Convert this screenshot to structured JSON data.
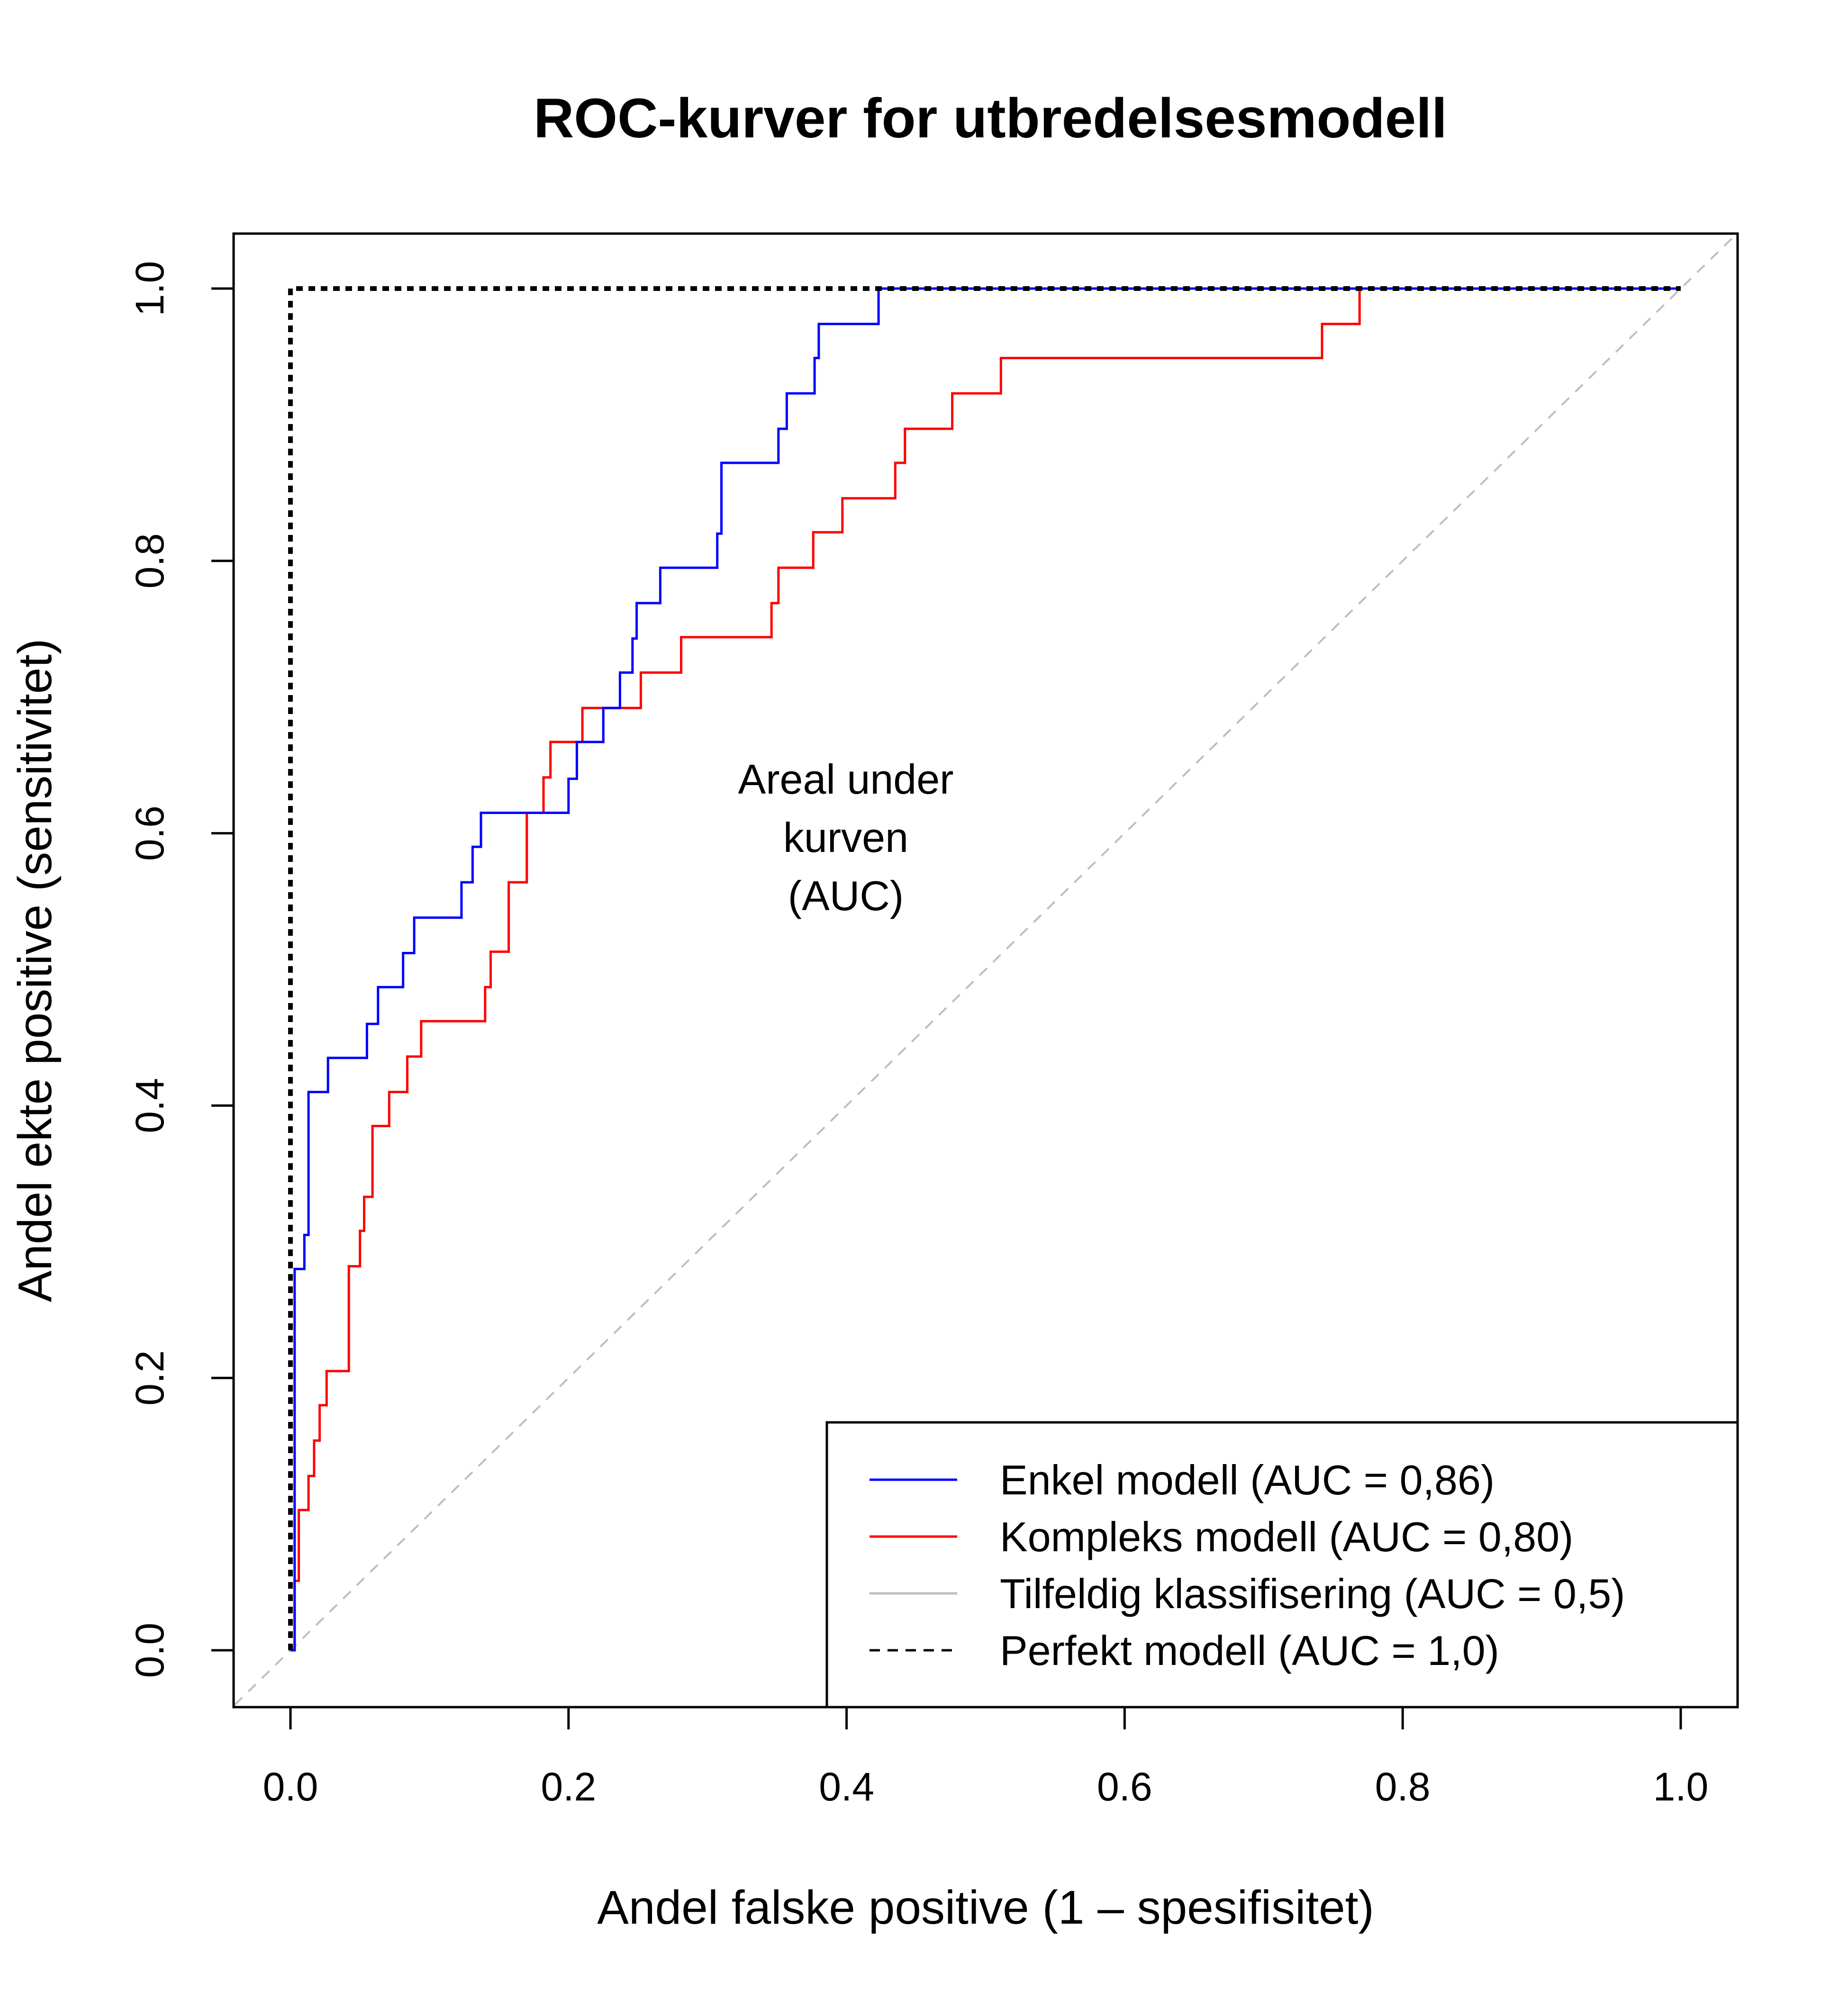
{
  "chart_data": {
    "type": "line",
    "title": "ROC-kurver for utbredelsesmodell",
    "xlabel": "Andel falske positive (1 – spesifisitet)",
    "ylabel": "Andel ekte positive (sensitivitet)",
    "xlim": [
      0,
      1
    ],
    "ylim": [
      0,
      1
    ],
    "x_ticks": [
      "0.0",
      "0.2",
      "0.4",
      "0.6",
      "0.8",
      "1.0"
    ],
    "y_ticks": [
      "0.0",
      "0.2",
      "0.4",
      "0.6",
      "0.8",
      "1.0"
    ],
    "grid": false,
    "legend_position": "bottom-right",
    "annotation": [
      "Areal under",
      "kurven",
      "(AUC)"
    ],
    "series": [
      {
        "name": "Enkel modell (AUC = 0,86)",
        "color": "#0000ff",
        "style": "solid",
        "step": true,
        "x": [
          0,
          0.003,
          0.003,
          0.01,
          0.01,
          0.013,
          0.013,
          0.027,
          0.027,
          0.055,
          0.055,
          0.063,
          0.063,
          0.081,
          0.081,
          0.089,
          0.089,
          0.123,
          0.123,
          0.131,
          0.131,
          0.137,
          0.137,
          0.2,
          0.2,
          0.206,
          0.206,
          0.225,
          0.225,
          0.237,
          0.237,
          0.246,
          0.246,
          0.249,
          0.249,
          0.252,
          0.252,
          0.266,
          0.266,
          0.307,
          0.307,
          0.31,
          0.31,
          0.351,
          0.351,
          0.357,
          0.357,
          0.377,
          0.377,
          0.38,
          0.38,
          0.423,
          0.423,
          1.0
        ],
        "y": [
          0,
          0,
          0.28,
          0.28,
          0.305,
          0.305,
          0.41,
          0.41,
          0.435,
          0.435,
          0.46,
          0.46,
          0.487,
          0.487,
          0.512,
          0.512,
          0.538,
          0.538,
          0.564,
          0.564,
          0.59,
          0.59,
          0.615,
          0.615,
          0.64,
          0.64,
          0.667,
          0.667,
          0.692,
          0.692,
          0.718,
          0.718,
          0.743,
          0.743,
          0.769,
          0.769,
          0.769,
          0.769,
          0.795,
          0.795,
          0.82,
          0.82,
          0.872,
          0.872,
          0.897,
          0.897,
          0.923,
          0.923,
          0.949,
          0.949,
          0.974,
          0.974,
          1.0,
          1.0
        ]
      },
      {
        "name": "Kompleks modell (AUC = 0,80)",
        "color": "#ff0000",
        "style": "solid",
        "step": true,
        "x": [
          0,
          0.003,
          0.003,
          0.006,
          0.006,
          0.013,
          0.013,
          0.017,
          0.017,
          0.021,
          0.021,
          0.026,
          0.026,
          0.042,
          0.042,
          0.05,
          0.05,
          0.053,
          0.053,
          0.059,
          0.059,
          0.071,
          0.071,
          0.084,
          0.084,
          0.094,
          0.094,
          0.14,
          0.14,
          0.144,
          0.144,
          0.157,
          0.157,
          0.17,
          0.17,
          0.182,
          0.182,
          0.187,
          0.187,
          0.21,
          0.21,
          0.252,
          0.252,
          0.281,
          0.281,
          0.346,
          0.346,
          0.351,
          0.351,
          0.376,
          0.376,
          0.397,
          0.397,
          0.435,
          0.435,
          0.442,
          0.442,
          0.476,
          0.476,
          0.511,
          0.511,
          0.742,
          0.742,
          0.769,
          0.769,
          1.0
        ],
        "y": [
          0,
          0,
          0.051,
          0.051,
          0.103,
          0.103,
          0.128,
          0.128,
          0.154,
          0.154,
          0.18,
          0.18,
          0.205,
          0.205,
          0.282,
          0.282,
          0.308,
          0.308,
          0.333,
          0.333,
          0.385,
          0.385,
          0.41,
          0.41,
          0.436,
          0.436,
          0.462,
          0.462,
          0.487,
          0.487,
          0.513,
          0.513,
          0.564,
          0.564,
          0.615,
          0.615,
          0.641,
          0.641,
          0.667,
          0.667,
          0.692,
          0.692,
          0.718,
          0.718,
          0.744,
          0.744,
          0.769,
          0.769,
          0.795,
          0.795,
          0.821,
          0.821,
          0.846,
          0.846,
          0.872,
          0.872,
          0.897,
          0.897,
          0.923,
          0.923,
          0.949,
          0.949,
          0.974,
          0.974,
          1.0,
          1.0
        ]
      },
      {
        "name": "Tilfeldig klassifisering (AUC = 0,5)",
        "color": "#bebebe",
        "style": "dashed",
        "x": [
          -0.04,
          1.04
        ],
        "y": [
          -0.04,
          1.04
        ]
      },
      {
        "name": "Perfekt modell (AUC = 1,0)",
        "color": "#000000",
        "style": "dotted",
        "x": [
          0,
          0,
          1
        ],
        "y": [
          0,
          1,
          1
        ]
      }
    ]
  }
}
